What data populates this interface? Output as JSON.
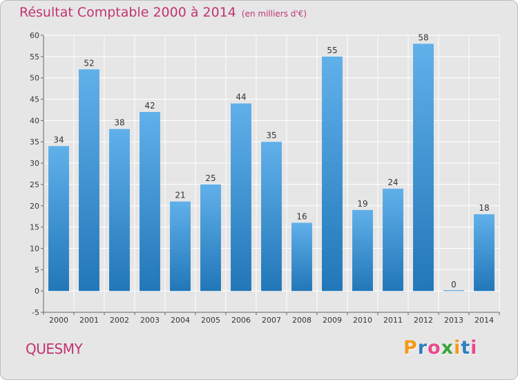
{
  "header": {
    "title": "Résultat Comptable 2000 à 2014",
    "unit": "(en milliers d'€)"
  },
  "footer": {
    "commune": "QUESMY",
    "logo_letters": [
      "P",
      "r",
      "o",
      "x",
      "i",
      "t",
      "i"
    ],
    "logo_colors": [
      "#f39a1b",
      "#2f7fc1",
      "#e94a8b",
      "#3aa538",
      "#f39a1b",
      "#2f7fc1",
      "#e94a8b"
    ]
  },
  "colors": {
    "title": "#c0356f",
    "bar_top": "#60b0ea",
    "bar_bottom": "#2277b8",
    "grid": "#ffffff",
    "background": "#e6e6e6"
  },
  "chart_data": {
    "type": "bar",
    "title": "Résultat Comptable 2000 à 2014",
    "subtitle": "(en milliers d'€)",
    "xlabel": "",
    "ylabel": "",
    "categories": [
      "2000",
      "2001",
      "2002",
      "2003",
      "2004",
      "2005",
      "2006",
      "2007",
      "2008",
      "2009",
      "2010",
      "2011",
      "2012",
      "2013",
      "2014"
    ],
    "values": [
      34,
      52,
      38,
      42,
      21,
      25,
      44,
      35,
      16,
      55,
      19,
      24,
      58,
      0,
      18
    ],
    "ylim": [
      -5,
      60
    ],
    "yticks": [
      -5,
      0,
      5,
      10,
      15,
      20,
      25,
      30,
      35,
      40,
      45,
      50,
      55,
      60
    ],
    "grid": true,
    "legend": "none"
  }
}
